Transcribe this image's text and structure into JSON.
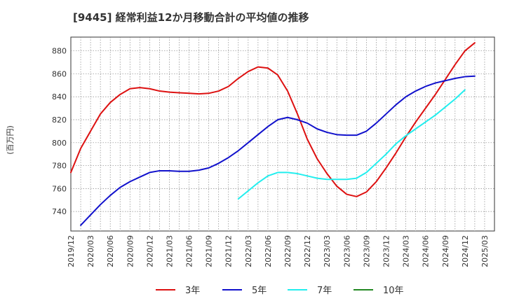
{
  "chart_data": {
    "type": "line",
    "title": "[9445]  経常利益12か月移動合計の平均値の推移",
    "ylabel": "(百万円)",
    "xlabel": "",
    "ylim": [
      723,
      892
    ],
    "yticks": [
      740,
      760,
      780,
      800,
      820,
      840,
      860,
      880
    ],
    "x_labels": [
      "2019/12",
      "2020/03",
      "2020/06",
      "2020/09",
      "2020/12",
      "2021/03",
      "2021/06",
      "2021/09",
      "2021/12",
      "2022/03",
      "2022/06",
      "2022/09",
      "2022/12",
      "2023/03",
      "2023/06",
      "2023/09",
      "2023/12",
      "2024/03",
      "2024/06",
      "2024/09",
      "2024/12",
      "2025/03"
    ],
    "grid": true,
    "legend_position": "bottom",
    "series": [
      {
        "name": "3年",
        "color": "#dd1111",
        "points": [
          [
            0,
            774
          ],
          [
            1,
            795
          ],
          [
            2,
            810
          ],
          [
            3,
            825
          ],
          [
            4,
            835
          ],
          [
            5,
            842
          ],
          [
            6,
            847
          ],
          [
            7,
            848
          ],
          [
            8,
            847
          ],
          [
            9,
            845
          ],
          [
            10,
            844
          ],
          [
            11,
            843.5
          ],
          [
            12,
            843
          ],
          [
            13,
            842.5
          ],
          [
            14,
            843
          ],
          [
            15,
            845
          ],
          [
            16,
            849
          ],
          [
            17,
            856
          ],
          [
            18,
            862
          ],
          [
            19,
            866
          ],
          [
            20,
            865
          ],
          [
            21,
            859
          ],
          [
            22,
            845
          ],
          [
            23,
            825
          ],
          [
            24,
            803
          ],
          [
            25,
            786
          ],
          [
            26,
            773
          ],
          [
            27,
            762
          ],
          [
            28,
            755
          ],
          [
            29,
            753
          ],
          [
            30,
            757
          ],
          [
            31,
            766
          ],
          [
            32,
            778
          ],
          [
            33,
            791
          ],
          [
            34,
            805
          ],
          [
            35,
            818
          ],
          [
            36,
            830
          ],
          [
            37,
            842
          ],
          [
            38,
            855
          ],
          [
            39,
            868
          ],
          [
            40,
            880
          ],
          [
            41,
            887
          ]
        ]
      },
      {
        "name": "5年",
        "color": "#1111cc",
        "points": [
          [
            1,
            728
          ],
          [
            2,
            737
          ],
          [
            3,
            746
          ],
          [
            4,
            754
          ],
          [
            5,
            761
          ],
          [
            6,
            766
          ],
          [
            7,
            770
          ],
          [
            8,
            774
          ],
          [
            9,
            775.5
          ],
          [
            10,
            775.5
          ],
          [
            11,
            775
          ],
          [
            12,
            775
          ],
          [
            13,
            776
          ],
          [
            14,
            778
          ],
          [
            15,
            782
          ],
          [
            16,
            787
          ],
          [
            17,
            793
          ],
          [
            18,
            800
          ],
          [
            19,
            807
          ],
          [
            20,
            814
          ],
          [
            21,
            820
          ],
          [
            22,
            822
          ],
          [
            23,
            820
          ],
          [
            24,
            817
          ],
          [
            25,
            812
          ],
          [
            26,
            809
          ],
          [
            27,
            807
          ],
          [
            28,
            806.5
          ],
          [
            29,
            806.5
          ],
          [
            30,
            810
          ],
          [
            31,
            817
          ],
          [
            32,
            825
          ],
          [
            33,
            833
          ],
          [
            34,
            840
          ],
          [
            35,
            845
          ],
          [
            36,
            849
          ],
          [
            37,
            852
          ],
          [
            38,
            854
          ],
          [
            39,
            856
          ],
          [
            40,
            857.5
          ],
          [
            41,
            858
          ]
        ]
      },
      {
        "name": "7年",
        "color": "#22eeee",
        "points": [
          [
            17,
            751
          ],
          [
            18,
            758
          ],
          [
            19,
            765
          ],
          [
            20,
            771
          ],
          [
            21,
            774
          ],
          [
            22,
            774
          ],
          [
            23,
            773
          ],
          [
            24,
            771
          ],
          [
            25,
            769
          ],
          [
            26,
            768
          ],
          [
            27,
            768
          ],
          [
            28,
            768
          ],
          [
            29,
            769
          ],
          [
            30,
            774
          ],
          [
            31,
            782
          ],
          [
            32,
            790
          ],
          [
            33,
            799
          ],
          [
            34,
            806
          ],
          [
            35,
            812
          ],
          [
            36,
            818
          ],
          [
            37,
            824
          ],
          [
            38,
            831
          ],
          [
            39,
            838
          ],
          [
            40,
            846
          ]
        ]
      },
      {
        "name": "10年",
        "color": "#228822",
        "points": []
      }
    ]
  }
}
